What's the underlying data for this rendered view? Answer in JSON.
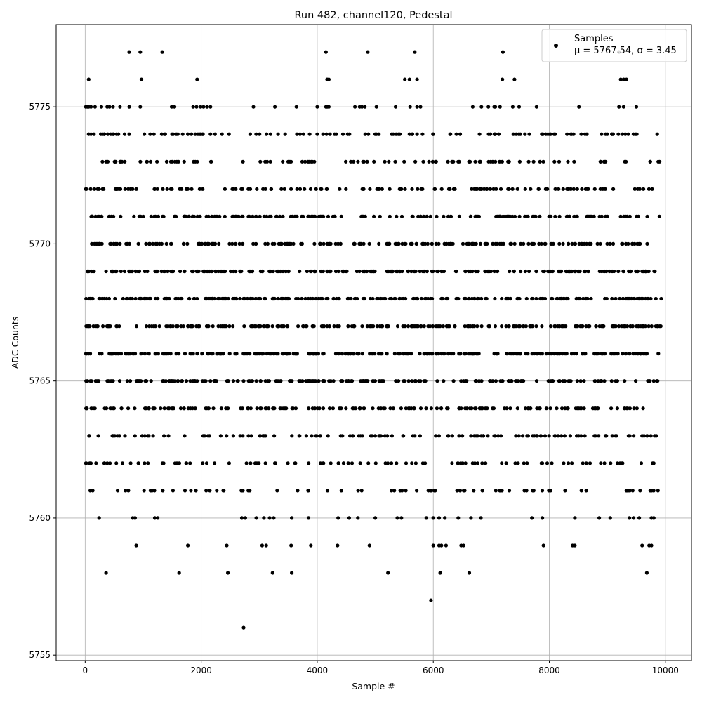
{
  "chart_data": {
    "type": "scatter",
    "title": "Run 482, channel120, Pedestal",
    "xlabel": "Sample #",
    "ylabel": "ADC Counts",
    "xlim": [
      -500,
      10450
    ],
    "ylim": [
      5754.8,
      5778.0
    ],
    "xticks": [
      0,
      2000,
      4000,
      6000,
      8000,
      10000
    ],
    "yticks": [
      5755,
      5760,
      5765,
      5770,
      5775
    ],
    "grid": true,
    "legend": {
      "placement": "top-right",
      "entries": [
        {
          "label": "Samples",
          "stats": "μ = 5767.54, σ = 3.45"
        }
      ]
    },
    "series": [
      {
        "name": "Samples",
        "color": "#000000",
        "marker": "circle",
        "n_points": 10000,
        "mean": 5767.54,
        "std": 3.45,
        "dense_levels": [
          5761,
          5762,
          5763,
          5764,
          5765,
          5766,
          5767,
          5768,
          5769,
          5770,
          5771,
          5772,
          5773,
          5774
        ],
        "sparse_points": [
          {
            "x": 60,
            "y": 5776
          },
          {
            "x": 760,
            "y": 5777
          },
          {
            "x": 950,
            "y": 5777
          },
          {
            "x": 970,
            "y": 5776
          },
          {
            "x": 1330,
            "y": 5777
          },
          {
            "x": 1930,
            "y": 5776
          },
          {
            "x": 4150,
            "y": 5777
          },
          {
            "x": 4170,
            "y": 5776
          },
          {
            "x": 4200,
            "y": 5776
          },
          {
            "x": 4870,
            "y": 5777
          },
          {
            "x": 5510,
            "y": 5776
          },
          {
            "x": 5590,
            "y": 5776
          },
          {
            "x": 5680,
            "y": 5777
          },
          {
            "x": 5720,
            "y": 5776
          },
          {
            "x": 7200,
            "y": 5777
          },
          {
            "x": 7190,
            "y": 5776
          },
          {
            "x": 7400,
            "y": 5776
          },
          {
            "x": 9200,
            "y": 5777
          },
          {
            "x": 9230,
            "y": 5776
          },
          {
            "x": 9280,
            "y": 5776
          },
          {
            "x": 9330,
            "y": 5776
          },
          {
            "x": 240,
            "y": 5760
          },
          {
            "x": 820,
            "y": 5760
          },
          {
            "x": 860,
            "y": 5760
          },
          {
            "x": 1200,
            "y": 5760
          },
          {
            "x": 1250,
            "y": 5760
          },
          {
            "x": 2700,
            "y": 5760
          },
          {
            "x": 2760,
            "y": 5760
          },
          {
            "x": 2950,
            "y": 5760
          },
          {
            "x": 3080,
            "y": 5760
          },
          {
            "x": 3180,
            "y": 5760
          },
          {
            "x": 3250,
            "y": 5760
          },
          {
            "x": 3560,
            "y": 5760
          },
          {
            "x": 3850,
            "y": 5760
          },
          {
            "x": 4360,
            "y": 5760
          },
          {
            "x": 4550,
            "y": 5760
          },
          {
            "x": 4700,
            "y": 5760
          },
          {
            "x": 5000,
            "y": 5760
          },
          {
            "x": 5380,
            "y": 5760
          },
          {
            "x": 5450,
            "y": 5760
          },
          {
            "x": 5880,
            "y": 5760
          },
          {
            "x": 6000,
            "y": 5760
          },
          {
            "x": 6100,
            "y": 5760
          },
          {
            "x": 6200,
            "y": 5760
          },
          {
            "x": 6430,
            "y": 5760
          },
          {
            "x": 6650,
            "y": 5760
          },
          {
            "x": 6820,
            "y": 5760
          },
          {
            "x": 7700,
            "y": 5760
          },
          {
            "x": 7880,
            "y": 5760
          },
          {
            "x": 8440,
            "y": 5760
          },
          {
            "x": 8860,
            "y": 5760
          },
          {
            "x": 9050,
            "y": 5760
          },
          {
            "x": 9380,
            "y": 5760
          },
          {
            "x": 9450,
            "y": 5760
          },
          {
            "x": 9550,
            "y": 5760
          },
          {
            "x": 9760,
            "y": 5760
          },
          {
            "x": 9800,
            "y": 5760
          },
          {
            "x": 880,
            "y": 5759
          },
          {
            "x": 1770,
            "y": 5759
          },
          {
            "x": 2440,
            "y": 5759
          },
          {
            "x": 3050,
            "y": 5759
          },
          {
            "x": 3120,
            "y": 5759
          },
          {
            "x": 3550,
            "y": 5759
          },
          {
            "x": 3890,
            "y": 5759
          },
          {
            "x": 4350,
            "y": 5759
          },
          {
            "x": 4900,
            "y": 5759
          },
          {
            "x": 6000,
            "y": 5759
          },
          {
            "x": 6100,
            "y": 5759
          },
          {
            "x": 6140,
            "y": 5759
          },
          {
            "x": 6220,
            "y": 5759
          },
          {
            "x": 6480,
            "y": 5759
          },
          {
            "x": 6520,
            "y": 5759
          },
          {
            "x": 7900,
            "y": 5759
          },
          {
            "x": 8400,
            "y": 5759
          },
          {
            "x": 8440,
            "y": 5759
          },
          {
            "x": 9600,
            "y": 5759
          },
          {
            "x": 9720,
            "y": 5759
          },
          {
            "x": 9760,
            "y": 5759
          },
          {
            "x": 360,
            "y": 5758
          },
          {
            "x": 1620,
            "y": 5758
          },
          {
            "x": 2460,
            "y": 5758
          },
          {
            "x": 3230,
            "y": 5758
          },
          {
            "x": 3560,
            "y": 5758
          },
          {
            "x": 5220,
            "y": 5758
          },
          {
            "x": 6120,
            "y": 5758
          },
          {
            "x": 6620,
            "y": 5758
          },
          {
            "x": 9680,
            "y": 5758
          },
          {
            "x": 5960,
            "y": 5757
          },
          {
            "x": 2730,
            "y": 5756
          }
        ]
      }
    ]
  }
}
